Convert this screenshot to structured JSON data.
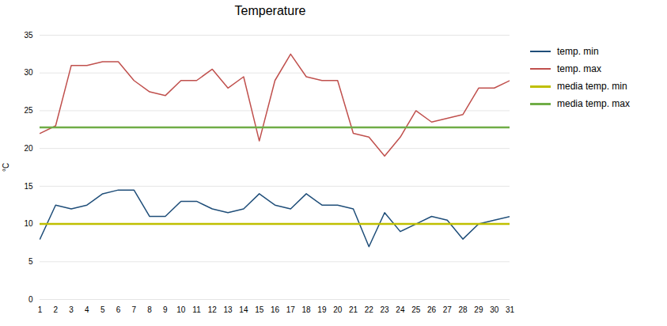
{
  "chart_data": {
    "type": "line",
    "title": "Temperature",
    "ylabel": "°C",
    "x": [
      1,
      2,
      3,
      4,
      5,
      6,
      7,
      8,
      9,
      10,
      11,
      12,
      13,
      14,
      15,
      16,
      17,
      18,
      19,
      20,
      21,
      22,
      23,
      24,
      25,
      26,
      27,
      28,
      29,
      30,
      31
    ],
    "series": [
      {
        "name": "temp. min",
        "color": "#1F4E79",
        "values": [
          8,
          12.5,
          12,
          12.5,
          14,
          14.5,
          14.5,
          11,
          11,
          13,
          13,
          12,
          11.5,
          12,
          14,
          12.5,
          12,
          14,
          12.5,
          12.5,
          12,
          7,
          11.5,
          9,
          10,
          11,
          10.5,
          8,
          10,
          10.5,
          11
        ]
      },
      {
        "name": "temp. max",
        "color": "#C0504D",
        "values": [
          22,
          23,
          31,
          31,
          31.5,
          31.5,
          29,
          27.5,
          27,
          29,
          29,
          30.5,
          28,
          29.5,
          21,
          29,
          32.5,
          29.5,
          29,
          29,
          22,
          21.5,
          19,
          21.5,
          25,
          23.5,
          24,
          24.5,
          28,
          28,
          29
        ]
      }
    ],
    "hlines": [
      {
        "name": "media temp. min",
        "color": "#BFBF00",
        "value": 10
      },
      {
        "name": "media temp. max",
        "color": "#70AD47",
        "value": 22.8
      }
    ],
    "xlim": [
      1,
      31
    ],
    "xticks": [
      1,
      2,
      3,
      4,
      5,
      6,
      7,
      8,
      9,
      10,
      11,
      12,
      13,
      14,
      15,
      16,
      17,
      18,
      19,
      20,
      21,
      22,
      23,
      24,
      25,
      26,
      27,
      28,
      29,
      30,
      31
    ],
    "ylim": [
      0,
      35
    ],
    "yticks": [
      0,
      5,
      10,
      15,
      20,
      25,
      30,
      35
    ],
    "grid": true,
    "legend": "right"
  }
}
